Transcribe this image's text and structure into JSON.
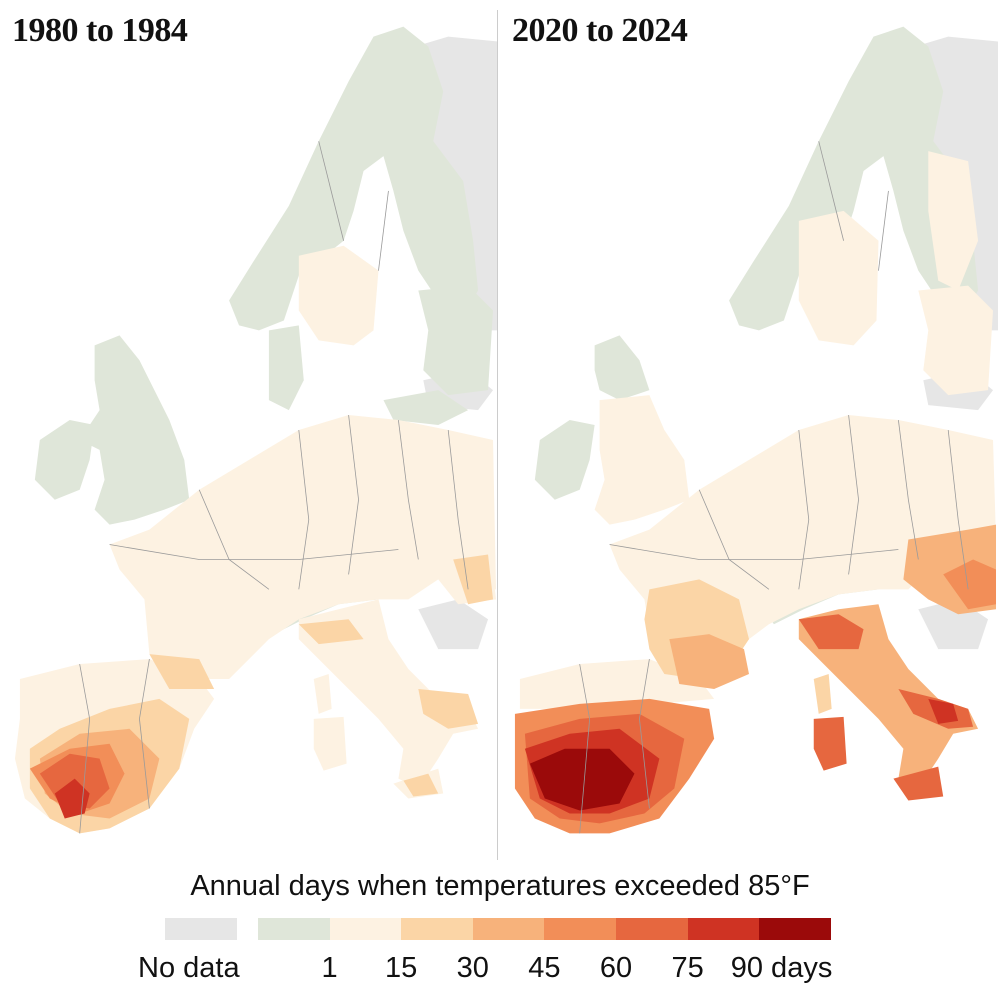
{
  "panels": [
    {
      "id": "left",
      "title": "1980 to 1984"
    },
    {
      "id": "right",
      "title": "2020 to 2024"
    }
  ],
  "legend": {
    "title": "Annual days when temperatures exceeded 85°F",
    "no_data_label": "No data",
    "no_data_color": "#e6e6e6",
    "bins": [
      {
        "color": "#dfe6d9"
      },
      {
        "color": "#fdf2e2"
      },
      {
        "color": "#fbd5a6"
      },
      {
        "color": "#f7b27b"
      },
      {
        "color": "#f28e58"
      },
      {
        "color": "#e6673f"
      },
      {
        "color": "#cf3323"
      },
      {
        "color": "#9b0a0a"
      }
    ],
    "ticks": [
      "1",
      "15",
      "30",
      "45",
      "60",
      "75",
      "90 days"
    ]
  },
  "colors": {
    "outside_region": "#e6e6e6",
    "border": "#9a9a9a"
  }
}
